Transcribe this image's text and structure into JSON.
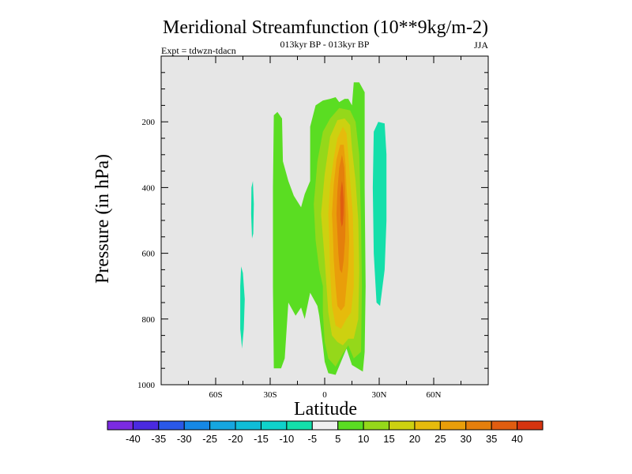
{
  "chart_data": {
    "type": "contour",
    "title": "Meridional Streamfunction (10**9kg/m-2)",
    "subtitle_center": "013kyr BP - 013kyr BP",
    "subtitle_left": "Expt = tdwzn-tdacn",
    "subtitle_right": "JJA",
    "xlabel": "Latitude",
    "ylabel": "Pressure (in hPa)",
    "xlim": [
      -90,
      90
    ],
    "ylim": [
      1000,
      0
    ],
    "x_ticks": [
      {
        "value": -60,
        "label": "60S"
      },
      {
        "value": -30,
        "label": "30S"
      },
      {
        "value": 0,
        "label": "0"
      },
      {
        "value": 30,
        "label": "30N"
      },
      {
        "value": 60,
        "label": "60N"
      }
    ],
    "y_ticks": [
      {
        "value": 200,
        "label": "200"
      },
      {
        "value": 400,
        "label": "400"
      },
      {
        "value": 600,
        "label": "600"
      },
      {
        "value": 800,
        "label": "800"
      },
      {
        "value": 1000,
        "label": "1000"
      }
    ],
    "background_color": "#e6e6e6",
    "colorbar": {
      "colors": [
        "#7b2be2",
        "#4a2ae0",
        "#2a58e8",
        "#1688e6",
        "#16a6e0",
        "#10bdd8",
        "#10d2cb",
        "#14dfaa",
        "#f0f0f0",
        "#5add22",
        "#95d81a",
        "#cdd110",
        "#e6bb0c",
        "#e99e0a",
        "#e57f0c",
        "#e05d10",
        "#d63410"
      ],
      "labels": [
        "-40",
        "-35",
        "-30",
        "-25",
        "-20",
        "-15",
        "-10",
        "-5",
        "5",
        "10",
        "15",
        "20",
        "25",
        "30",
        "35",
        "40"
      ]
    },
    "regions": [
      {
        "name": "cyan-far-south",
        "color": "#14dfaa",
        "points": [
          [
            -45,
            660
          ],
          [
            -44,
            740
          ],
          [
            -44.5,
            830
          ],
          [
            -45.5,
            890
          ],
          [
            -46.5,
            830
          ],
          [
            -46.5,
            700
          ],
          [
            -46,
            640
          ]
        ]
      },
      {
        "name": "cyan-south",
        "color": "#14dfaa",
        "points": [
          [
            -39.5,
            380
          ],
          [
            -39,
            450
          ],
          [
            -39.3,
            540
          ],
          [
            -40,
            555
          ],
          [
            -40.5,
            480
          ],
          [
            -40.3,
            400
          ]
        ]
      },
      {
        "name": "cyan-30n",
        "color": "#14dfaa",
        "points": [
          [
            27,
            230
          ],
          [
            29.5,
            200
          ],
          [
            33,
            205
          ],
          [
            34,
            300
          ],
          [
            34,
            500
          ],
          [
            33,
            650
          ],
          [
            30.5,
            760
          ],
          [
            28.5,
            750
          ],
          [
            27,
            600
          ],
          [
            26.5,
            400
          ]
        ]
      },
      {
        "name": "green-main",
        "color": "#5add22",
        "points": [
          [
            -28,
            180
          ],
          [
            -26,
            170
          ],
          [
            -23.5,
            190
          ],
          [
            -23,
            320
          ],
          [
            -20,
            380
          ],
          [
            -17,
            425
          ],
          [
            -13,
            460
          ],
          [
            -11,
            420
          ],
          [
            -8,
            380
          ],
          [
            -8,
            215
          ],
          [
            -5,
            150
          ],
          [
            -1,
            135
          ],
          [
            3,
            130
          ],
          [
            6,
            125
          ],
          [
            8,
            140
          ],
          [
            11,
            130
          ],
          [
            13,
            130
          ],
          [
            15,
            150
          ],
          [
            16,
            80
          ],
          [
            19,
            80
          ],
          [
            22,
            110
          ],
          [
            22,
            400
          ],
          [
            22.5,
            700
          ],
          [
            22,
            900
          ],
          [
            21,
            960
          ],
          [
            15,
            940
          ],
          [
            12,
            890
          ],
          [
            9,
            930
          ],
          [
            6,
            970
          ],
          [
            2,
            965
          ],
          [
            0,
            930
          ],
          [
            -1,
            880
          ],
          [
            -3,
            790
          ],
          [
            -4,
            760
          ],
          [
            -8,
            720
          ],
          [
            -11,
            800
          ],
          [
            -13,
            765
          ],
          [
            -16,
            790
          ],
          [
            -20,
            750
          ],
          [
            -22,
            920
          ],
          [
            -24,
            950
          ],
          [
            -28,
            950
          ],
          [
            -28.5,
            700
          ],
          [
            -28.5,
            400
          ]
        ]
      },
      {
        "name": "yellowgreen",
        "color": "#95d81a",
        "points": [
          [
            -4,
            320
          ],
          [
            -1,
            230
          ],
          [
            3,
            190
          ],
          [
            8,
            158
          ],
          [
            14,
            165
          ],
          [
            17,
            200
          ],
          [
            19,
            300
          ],
          [
            20,
            500
          ],
          [
            20.5,
            700
          ],
          [
            20,
            900
          ],
          [
            16,
            920
          ],
          [
            13,
            880
          ],
          [
            10,
            905
          ],
          [
            6,
            945
          ],
          [
            2,
            920
          ],
          [
            0,
            870
          ],
          [
            -1,
            780
          ],
          [
            -1,
            700
          ],
          [
            -3,
            650
          ],
          [
            -5,
            560
          ],
          [
            -6,
            450
          ]
        ]
      },
      {
        "name": "yellow",
        "color": "#cdd110",
        "points": [
          [
            -2,
            480
          ],
          [
            0,
            360
          ],
          [
            3,
            245
          ],
          [
            7,
            195
          ],
          [
            11,
            190
          ],
          [
            14,
            210
          ],
          [
            15,
            280
          ],
          [
            17,
            380
          ],
          [
            18.5,
            500
          ],
          [
            19,
            650
          ],
          [
            18.5,
            800
          ],
          [
            16,
            860
          ],
          [
            13,
            860
          ],
          [
            10,
            880
          ],
          [
            7,
            870
          ],
          [
            4,
            850
          ],
          [
            2,
            780
          ],
          [
            1,
            700
          ],
          [
            0,
            620
          ]
        ]
      },
      {
        "name": "gold",
        "color": "#e6bb0c",
        "points": [
          [
            2,
            480
          ],
          [
            3,
            390
          ],
          [
            5,
            310
          ],
          [
            7,
            250
          ],
          [
            10,
            215
          ],
          [
            12,
            235
          ],
          [
            13,
            300
          ],
          [
            14,
            380
          ],
          [
            15.5,
            480
          ],
          [
            16,
            600
          ],
          [
            16,
            700
          ],
          [
            14.5,
            780
          ],
          [
            12,
            800
          ],
          [
            9,
            830
          ],
          [
            6,
            820
          ],
          [
            4,
            760
          ],
          [
            3,
            660
          ],
          [
            2.5,
            560
          ]
        ]
      },
      {
        "name": "orange",
        "color": "#e99e0a",
        "points": [
          [
            4,
            480
          ],
          [
            5,
            390
          ],
          [
            6.5,
            315
          ],
          [
            8.5,
            270
          ],
          [
            10.5,
            270
          ],
          [
            11.5,
            330
          ],
          [
            12,
            400
          ],
          [
            13,
            480
          ],
          [
            13.5,
            560
          ],
          [
            13,
            640
          ],
          [
            12,
            700
          ],
          [
            11,
            760
          ],
          [
            9,
            775
          ],
          [
            7,
            760
          ],
          [
            6,
            700
          ],
          [
            5,
            620
          ],
          [
            4.5,
            540
          ]
        ]
      },
      {
        "name": "darkorange",
        "color": "#e57f0c",
        "points": [
          [
            6.5,
            480
          ],
          [
            7,
            410
          ],
          [
            8,
            340
          ],
          [
            9.5,
            300
          ],
          [
            10.8,
            340
          ],
          [
            11.2,
            410
          ],
          [
            11.5,
            480
          ],
          [
            11.3,
            550
          ],
          [
            10.5,
            620
          ],
          [
            9.5,
            660
          ],
          [
            8.3,
            650
          ],
          [
            7.5,
            600
          ],
          [
            7,
            540
          ]
        ]
      },
      {
        "name": "red-orange",
        "color": "#e05d10",
        "points": [
          [
            8.5,
            430
          ],
          [
            9,
            400
          ],
          [
            9.5,
            380
          ],
          [
            10,
            400
          ],
          [
            10.5,
            440
          ],
          [
            10.4,
            480
          ],
          [
            10,
            510
          ],
          [
            9.4,
            520
          ],
          [
            8.8,
            500
          ]
        ]
      }
    ]
  }
}
